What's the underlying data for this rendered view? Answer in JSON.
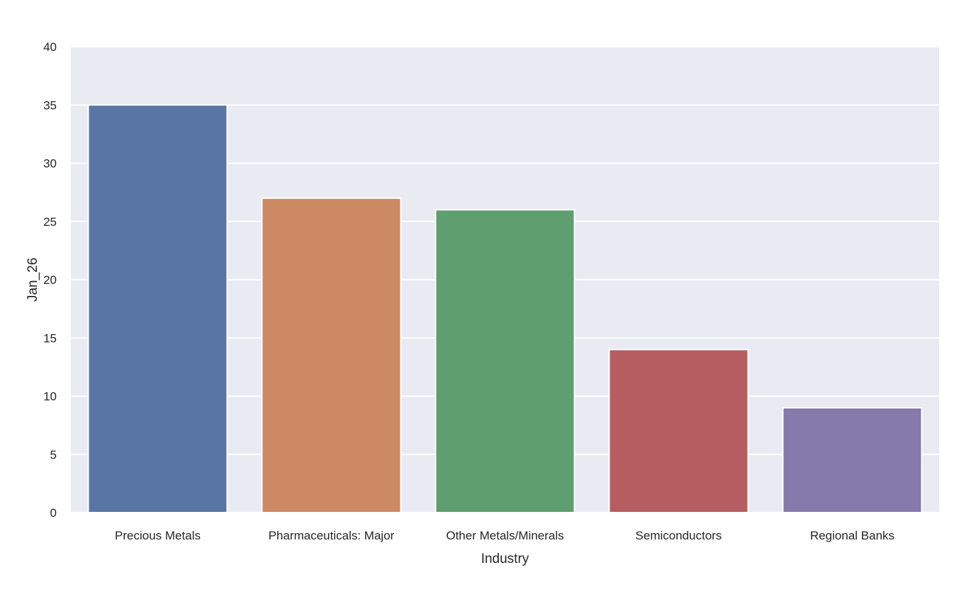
{
  "chart_data": {
    "type": "bar",
    "title": "",
    "xlabel": "Industry",
    "ylabel": "Jan_26",
    "categories": [
      "Precious Metals",
      "Pharmaceuticals: Major",
      "Other Metals/Minerals",
      "Semiconductors",
      "Regional Banks"
    ],
    "values": [
      35,
      27,
      26,
      14,
      9
    ],
    "colors": [
      "#5875a4",
      "#cc8963",
      "#5f9e6e",
      "#b55d60",
      "#857aab"
    ],
    "ylim": [
      0,
      40
    ],
    "yticks": [
      0,
      5,
      10,
      15,
      20,
      25,
      30,
      35,
      40
    ],
    "grid": true,
    "legend": "none",
    "style": {
      "plot_background": "#eaeaf2",
      "grid_color": "#ffffff"
    }
  }
}
